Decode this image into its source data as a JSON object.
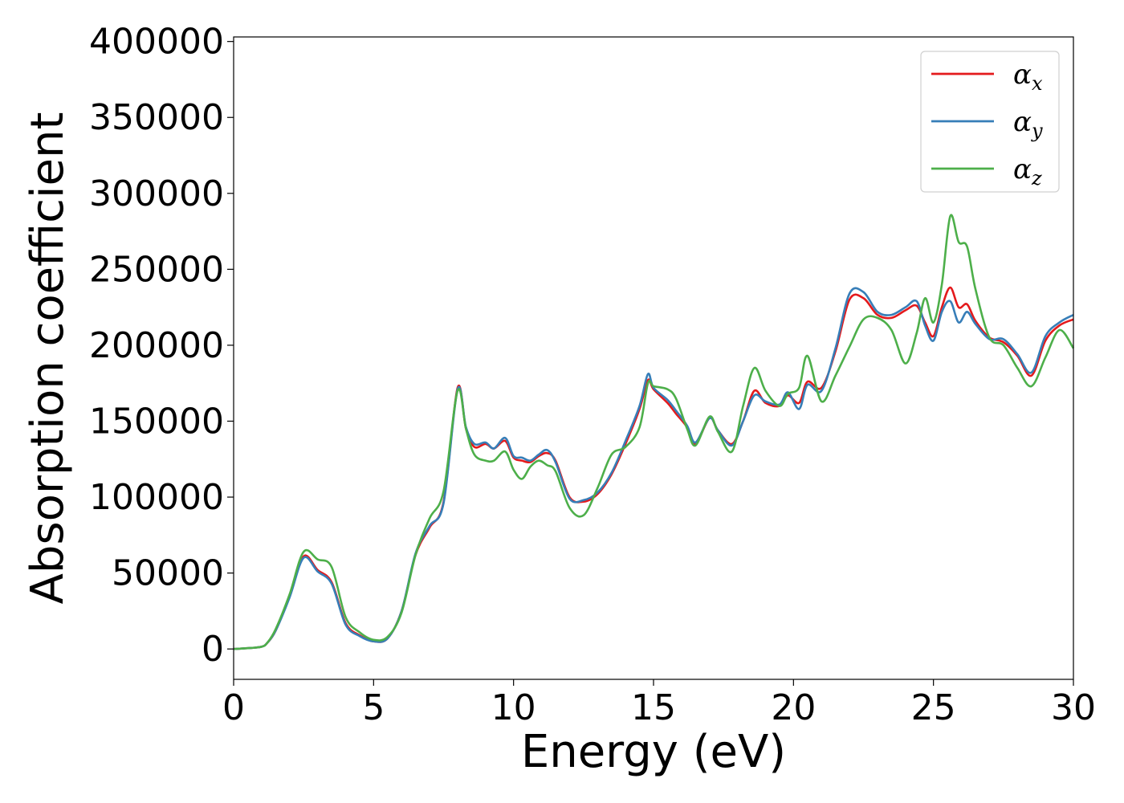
{
  "chart_data": {
    "type": "line",
    "xlabel": "Energy (eV)",
    "ylabel": "Absorption coefficient",
    "xlim": [
      0,
      30
    ],
    "ylim": [
      -20000,
      403000
    ],
    "xticks": [
      0,
      5,
      10,
      15,
      20,
      25,
      30
    ],
    "yticks": [
      0,
      50000,
      100000,
      150000,
      200000,
      250000,
      300000,
      350000,
      400000
    ],
    "xtick_labels": [
      "0",
      "5",
      "10",
      "15",
      "20",
      "25",
      "30"
    ],
    "ytick_labels": [
      "0",
      "50000",
      "100000",
      "150000",
      "200000",
      "250000",
      "300000",
      "350000",
      "400000"
    ],
    "grid": false,
    "legend": {
      "position": "top-right"
    },
    "series": [
      {
        "name": "αx",
        "symbol": "α",
        "subscript": "x",
        "color": "#e41a1c",
        "x": [
          0,
          0.5,
          1,
          1.2,
          1.5,
          2,
          2.5,
          3,
          3.5,
          4,
          4.5,
          5,
          5.5,
          6,
          6.5,
          7,
          7.5,
          8,
          8.3,
          8.6,
          9,
          9.3,
          9.7,
          10,
          10.3,
          10.6,
          10.9,
          11.2,
          11.5,
          12,
          12.5,
          13,
          13.5,
          14,
          14.5,
          14.8,
          15,
          15.5,
          15.8,
          16.2,
          16.5,
          17,
          17.3,
          17.8,
          18.2,
          18.6,
          19,
          19.5,
          19.8,
          20.2,
          20.5,
          21,
          21.5,
          22,
          22.5,
          23,
          23.5,
          24,
          24.4,
          24.7,
          25,
          25.3,
          25.6,
          25.9,
          26.2,
          26.5,
          27,
          27.5,
          28,
          28.5,
          29,
          29.5,
          30
        ],
        "y": [
          0,
          500,
          1500,
          4000,
          12000,
          35000,
          61000,
          52000,
          44000,
          17000,
          9000,
          5000,
          7000,
          25000,
          62000,
          80000,
          97000,
          172000,
          145000,
          133000,
          135000,
          132000,
          137000,
          126000,
          124000,
          123000,
          127000,
          129000,
          124000,
          100000,
          97000,
          102000,
          115000,
          135000,
          158000,
          177000,
          171000,
          162000,
          155000,
          146000,
          135000,
          152000,
          144000,
          135000,
          150000,
          170000,
          162000,
          160000,
          167000,
          162000,
          176000,
          172000,
          196000,
          230000,
          231000,
          220000,
          218000,
          223000,
          226000,
          215000,
          206000,
          225000,
          238000,
          225000,
          227000,
          216000,
          205000,
          202000,
          193000,
          180000,
          203000,
          213000,
          217000
        ]
      },
      {
        "name": "αy",
        "symbol": "α",
        "subscript": "y",
        "color": "#377eb8",
        "x": [
          0,
          0.5,
          1,
          1.2,
          1.5,
          2,
          2.5,
          3,
          3.5,
          4,
          4.5,
          5,
          5.5,
          6,
          6.5,
          7,
          7.5,
          8,
          8.3,
          8.6,
          9,
          9.3,
          9.7,
          10,
          10.3,
          10.6,
          10.9,
          11.2,
          11.5,
          12,
          12.5,
          13,
          13.5,
          14,
          14.5,
          14.8,
          15,
          15.5,
          15.8,
          16.2,
          16.5,
          17,
          17.3,
          17.8,
          18.2,
          18.6,
          19,
          19.5,
          19.8,
          20.2,
          20.5,
          21,
          21.5,
          22,
          22.5,
          23,
          23.5,
          24,
          24.4,
          24.7,
          25,
          25.3,
          25.6,
          25.9,
          26.2,
          26.5,
          27,
          27.5,
          28,
          28.5,
          29,
          29.5,
          30
        ],
        "y": [
          0,
          500,
          1500,
          4000,
          12000,
          34000,
          60000,
          51000,
          43000,
          16000,
          8500,
          5000,
          7000,
          25000,
          63000,
          81000,
          96000,
          171000,
          146000,
          135000,
          136000,
          132000,
          139000,
          127000,
          126000,
          124000,
          128000,
          131000,
          123000,
          99000,
          98000,
          103000,
          116000,
          137000,
          160000,
          181000,
          172000,
          164000,
          157000,
          147000,
          136000,
          152000,
          144000,
          134000,
          150000,
          167000,
          163000,
          161000,
          169000,
          158000,
          174000,
          170000,
          198000,
          234000,
          235000,
          222000,
          220000,
          225000,
          229000,
          213000,
          203000,
          222000,
          229000,
          215000,
          222000,
          214000,
          204000,
          204000,
          194000,
          182000,
          206000,
          215000,
          220000
        ]
      },
      {
        "name": "αz",
        "symbol": "α",
        "subscript": "z",
        "color": "#4daf4a",
        "x": [
          0,
          0.5,
          1,
          1.2,
          1.5,
          2,
          2.5,
          3,
          3.5,
          4,
          4.5,
          5,
          5.5,
          6,
          6.5,
          7,
          7.5,
          8,
          8.3,
          8.6,
          9,
          9.3,
          9.7,
          10,
          10.3,
          10.6,
          10.9,
          11.2,
          11.5,
          12,
          12.5,
          13,
          13.5,
          14,
          14.5,
          14.8,
          15,
          15.5,
          15.8,
          16.2,
          16.5,
          17,
          17.3,
          17.8,
          18.2,
          18.6,
          19,
          19.5,
          19.8,
          20.2,
          20.5,
          21,
          21.5,
          22,
          22.5,
          23,
          23.5,
          24,
          24.4,
          24.7,
          25,
          25.3,
          25.6,
          25.9,
          26.2,
          26.5,
          27,
          27.5,
          28,
          28.5,
          29,
          29.5,
          30
        ],
        "y": [
          0,
          500,
          1500,
          4000,
          13000,
          36000,
          64000,
          59000,
          54000,
          21000,
          11000,
          6000,
          8000,
          24000,
          62000,
          86000,
          104000,
          170000,
          145000,
          128000,
          124000,
          124000,
          130000,
          118000,
          112000,
          120000,
          124000,
          121000,
          117000,
          93000,
          88000,
          106000,
          128000,
          133000,
          146000,
          175000,
          173000,
          171000,
          165000,
          145000,
          134000,
          153000,
          143000,
          130000,
          160000,
          185000,
          170000,
          160000,
          168000,
          172000,
          193000,
          163000,
          180000,
          199000,
          217000,
          218000,
          210000,
          188000,
          208000,
          231000,
          215000,
          240000,
          285000,
          268000,
          265000,
          237000,
          205000,
          200000,
          185000,
          173000,
          192000,
          210000,
          198000
        ]
      }
    ]
  }
}
